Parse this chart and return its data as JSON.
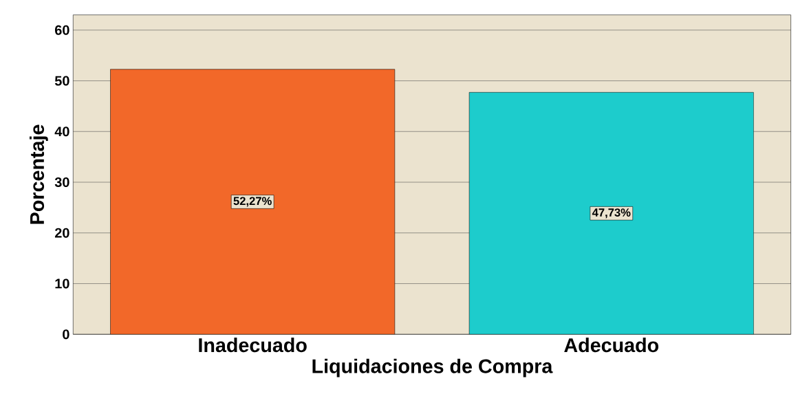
{
  "chart_data": {
    "type": "bar",
    "xlabel": "Liquidaciones de Compra",
    "ylabel": "Porcentaje",
    "categories": [
      "Inadecuado",
      "Adecuado"
    ],
    "values": [
      52.27,
      47.73
    ],
    "colors": [
      "#f26829",
      "#1dcccc"
    ],
    "value_labels": [
      "52,27%",
      "47,73%"
    ],
    "ylim": [
      0,
      63
    ],
    "yticks": [
      0,
      10,
      20,
      30,
      40,
      50,
      60
    ],
    "grid": "y"
  }
}
